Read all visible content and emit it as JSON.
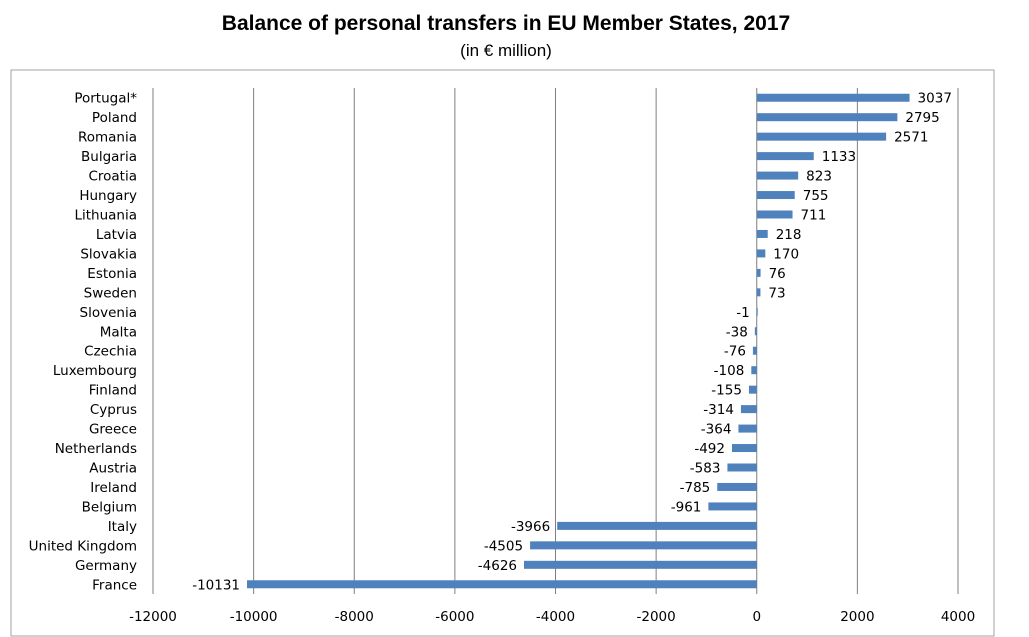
{
  "chart_data": {
    "type": "bar",
    "orientation": "horizontal",
    "title": "Balance of personal transfers in EU Member States, 2017",
    "subtitle": "(in € million)",
    "categories": [
      "Portugal*",
      "Poland",
      "Romania",
      "Bulgaria",
      "Croatia",
      "Hungary",
      "Lithuania",
      "Latvia",
      "Slovakia",
      "Estonia",
      "Sweden",
      "Slovenia",
      "Malta",
      "Czechia",
      "Luxembourg",
      "Finland",
      "Cyprus",
      "Greece",
      "Netherlands",
      "Austria",
      "Ireland",
      "Belgium",
      "Italy",
      "United Kingdom",
      "Germany",
      "France"
    ],
    "values": [
      3037,
      2795,
      2571,
      1133,
      823,
      755,
      711,
      218,
      170,
      76,
      73,
      -1,
      -38,
      -76,
      -108,
      -155,
      -314,
      -364,
      -492,
      -583,
      -785,
      -961,
      -3966,
      -4505,
      -4626,
      -10131
    ],
    "xlim": [
      -12000,
      4000
    ],
    "xticks": [
      "-12000",
      "-10000",
      "-8000",
      "-6000",
      "-4000",
      "-2000",
      "0",
      "2000",
      "4000"
    ],
    "grid": "vertical",
    "bar_color": "#4f81bd"
  }
}
